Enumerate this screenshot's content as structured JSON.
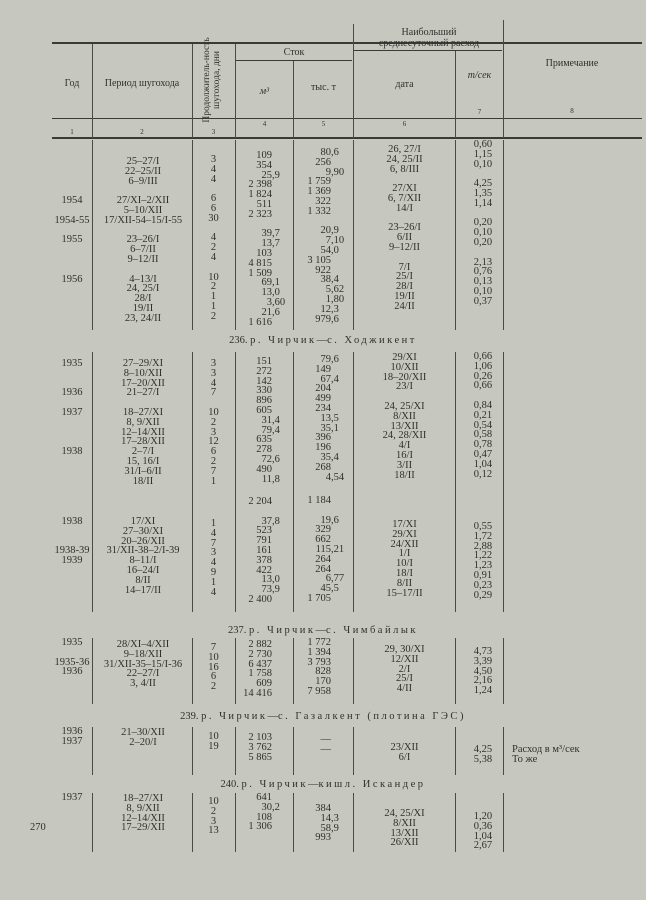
{
  "header": {
    "year": "Год",
    "period": "Период шугохода",
    "duration": "Продолжитель-ность шугохода, дни",
    "runoff": "Сток",
    "runoff_m3": "м³",
    "runoff_t": "тыс. т",
    "max_discharge": "Наибольший среднесуточный расход",
    "date": "дата",
    "t_sec": "т/сек",
    "note": "Примечание",
    "col_numbers": [
      "1",
      "2",
      "3",
      "4",
      "5",
      "6",
      "7",
      "8"
    ]
  },
  "sections": [
    {
      "title": "",
      "columns": {
        "year": [
          "",
          "",
          "",
          "",
          "1954",
          "",
          "1954-55",
          "",
          "1955",
          "",
          "",
          "",
          "1956"
        ],
        "period": [
          "25–27/I",
          "22–25/II",
          "6–9/III",
          "",
          "27/XI–2/XII",
          "5–10/XII",
          "17/XII-54–15/I-55",
          "",
          "23–26/I",
          "6–7/II",
          "9–12/II",
          "",
          "4–13/I",
          "24, 25/I",
          "28/I",
          "19/II",
          "23, 24/II"
        ],
        "days": [
          "3",
          "4",
          "4",
          "",
          "6",
          "6",
          "30",
          "",
          "4",
          "2",
          "4",
          "",
          "10",
          "2",
          "1",
          "1",
          "2"
        ],
        "m3": [
          "109",
          "354",
          "25,9",
          "2 398",
          "1 824",
          "511",
          "2 323",
          "",
          "39,7",
          "13,7",
          "103",
          "4 815",
          "1 509",
          "69,1",
          "13,0",
          "3,60",
          "21,6",
          "1 616"
        ],
        "thous_t": [
          "80,6",
          "256",
          "9,90",
          "1 759",
          "1 369",
          "322",
          "1 332",
          "",
          "20,9",
          "7,10",
          "54,0",
          "3 105",
          "922",
          "38,4",
          "5,62",
          "1,80",
          "12,3",
          "979,6"
        ],
        "date": [
          "26, 27/I",
          "24, 25/II",
          "6, 8/III",
          "",
          "27/XI",
          "6, 7/XII",
          "14/I",
          "",
          "23–26/I",
          "6/II",
          "9–12/II",
          "",
          "7/I",
          "25/I",
          "28/I",
          "19/II",
          "24/II"
        ],
        "t_sec": [
          "0,60",
          "1,15",
          "0,10",
          "",
          "4,25",
          "1,35",
          "1,14",
          "",
          "0,20",
          "0,10",
          "0,20",
          "",
          "2,13",
          "0,76",
          "0,13",
          "0,10",
          "0,37"
        ],
        "note": []
      }
    },
    {
      "number": "236.",
      "river": "р. Чирчик",
      "site": "с. Ходжикент",
      "columns": {
        "year": [
          "1935",
          "",
          "",
          "1936",
          "",
          "1937",
          "",
          "",
          "",
          "1938"
        ],
        "period": [
          "27–29/XI",
          "8–10/XII",
          "17–20/XII",
          "21–27/I",
          "",
          "18–27/XI",
          "8, 9/XII",
          "12–14/XII",
          "17–28/XII",
          "2–7/I",
          "15, 16/I",
          "31/I–6/II",
          "18/II"
        ],
        "days": [
          "3",
          "3",
          "4",
          "7",
          "",
          "10",
          "2",
          "3",
          "12",
          "6",
          "2",
          "7",
          "1"
        ],
        "m3": [
          "151",
          "272",
          "142",
          "330",
          "896",
          "605",
          "31,4",
          "79,4",
          "635",
          "278",
          "72,6",
          "490",
          "11,8"
        ],
        "thous_t": [
          "79,6",
          "149",
          "67,4",
          "204",
          "499",
          "234",
          "13,5",
          "35,1",
          "396",
          "196",
          "35,4",
          "268",
          "4,54"
        ],
        "date": [
          "29/XI",
          "10/XII",
          "18–20/XII",
          "23/I",
          "",
          "24, 25/XI",
          "8/XII",
          "13/XII",
          "24, 28/XII",
          "4/I",
          "16/I",
          "3/II",
          "18/II"
        ],
        "t_sec": [
          "0,66",
          "1,06",
          "0,26",
          "0,66",
          "",
          "0,84",
          "0,21",
          "0,54",
          "0,58",
          "0,78",
          "0,47",
          "1,04",
          "0,12"
        ],
        "note": []
      }
    },
    {
      "title": "",
      "columns": {
        "year": [
          "1938",
          "",
          "",
          "1938-39",
          "1939"
        ],
        "period": [
          "17/XI",
          "27–30/XI",
          "20–26/XII",
          "31/XII-38–2/I-39",
          "8–11/I",
          "16–24/I",
          "8/II",
          "14–17/II"
        ],
        "days": [
          "1",
          "4",
          "7",
          "3",
          "4",
          "9",
          "1",
          "4"
        ],
        "m3": [
          "2 204",
          "",
          "37,8",
          "523",
          "791",
          "161",
          "378",
          "422",
          "13,0",
          "73,9",
          "2 400"
        ],
        "thous_t": [
          "1 184",
          "",
          "19,6",
          "329",
          "662",
          "115,21",
          "264",
          "264",
          "6,77",
          "45,5",
          "1 705"
        ],
        "date": [
          "17/XI",
          "29/XI",
          "24/XII",
          "1/I",
          "10/I",
          "18/I",
          "8/II",
          "15–17/II"
        ],
        "t_sec": [
          "0,55",
          "1,72",
          "2,88",
          "1,22",
          "1,23",
          "0,91",
          "0,23",
          "0,29"
        ],
        "note": []
      }
    },
    {
      "number": "237.",
      "river": "р. Чирчик",
      "site": "с. Чимбайлык",
      "columns": {
        "year": [
          "1935",
          "",
          "1935-36",
          "1936"
        ],
        "period": [
          "28/XI–4/XII",
          "9–18/XII",
          "31/XII-35–15/I-36",
          "22–27/I",
          "3, 4/II"
        ],
        "days": [
          "7",
          "10",
          "16",
          "6",
          "2"
        ],
        "m3": [
          "2 882",
          "2 730",
          "6 437",
          "1 758",
          "609",
          "14 416"
        ],
        "thous_t": [
          "1 772",
          "1 394",
          "3 793",
          "828",
          "170",
          "7 958"
        ],
        "date": [
          "29, 30/XI",
          "12/XII",
          "2/I",
          "25/I",
          "4/II"
        ],
        "t_sec": [
          "4,73",
          "3,39",
          "4,50",
          "2,16",
          "1,24"
        ],
        "note": []
      }
    },
    {
      "number": "239.",
      "river": "р. Чирчик",
      "site": "с. Газалкент (плотина ГЭС)",
      "columns": {
        "year": [
          "1936",
          "1937"
        ],
        "period": [
          "21–30/XII",
          "2–20/I"
        ],
        "days": [
          "10",
          "19"
        ],
        "m3": [
          "2 103",
          "3 762",
          "5 865"
        ],
        "thous_t": [
          "—",
          "—"
        ],
        "date": [
          "23/XII",
          "6/I"
        ],
        "t_sec": [
          "4,25",
          "5,38"
        ],
        "note": [
          "Расход в м³/сек",
          "То же"
        ]
      }
    },
    {
      "number": "240.",
      "river": "р. Чирчик",
      "site": "кишл. Искандер",
      "columns": {
        "year": [
          "1937"
        ],
        "period": [
          "18–27/XI",
          "8, 9/XII",
          "12–14/XII",
          "17–29/XII"
        ],
        "days": [
          "10",
          "2",
          "3",
          "13"
        ],
        "m3": [
          "641",
          "30,2",
          "108",
          "1 306"
        ],
        "thous_t": [
          "384",
          "14,3",
          "58,9",
          "993"
        ],
        "date": [
          "24, 25/XI",
          "8/XII",
          "13/XII",
          "26/XII"
        ],
        "t_sec": [
          "1,20",
          "0,36",
          "1,04",
          "2,67"
        ],
        "note": []
      }
    }
  ],
  "page_number": "270"
}
